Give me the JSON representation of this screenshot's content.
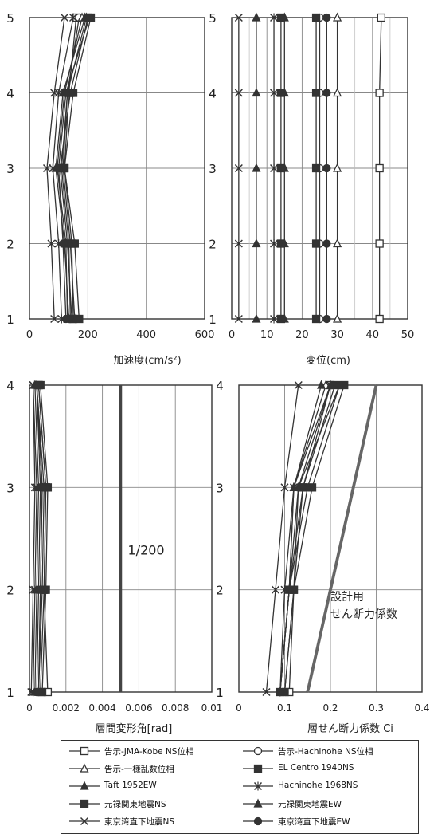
{
  "chart_data": [
    {
      "type": "line",
      "xlabel": "加速度(cm/s²)",
      "ylabel": "",
      "xticks": [
        "0",
        "200",
        "400",
        "600"
      ],
      "yticks": [
        "1",
        "2",
        "3",
        "4",
        "5"
      ],
      "xlim": [
        0,
        600
      ],
      "ylim": [
        1,
        5
      ],
      "grid": true,
      "y": [
        1,
        2,
        3,
        4,
        5
      ],
      "series": [
        {
          "name": "告示-JMA-Kobe NS位相",
          "marker": "square-open",
          "values": [
            150,
            145,
            120,
            135,
            160
          ]
        },
        {
          "name": "告示-Hachinohe NS位相",
          "marker": "circle-open",
          "values": [
            140,
            135,
            110,
            130,
            170
          ]
        },
        {
          "name": "告示-一様乱数位相",
          "marker": "triangle-open",
          "values": [
            130,
            125,
            95,
            120,
            180
          ]
        },
        {
          "name": "Taft 1952EW",
          "marker": "triangle",
          "values": [
            135,
            120,
            90,
            115,
            190
          ]
        },
        {
          "name": "EL Centro 1940NS",
          "marker": "square",
          "values": [
            170,
            155,
            120,
            150,
            210
          ]
        },
        {
          "name": "Hachinohe 1968NS",
          "marker": "x-bar",
          "values": [
            110,
            100,
            80,
            100,
            150
          ]
        },
        {
          "name": "元禄関東地震NS",
          "marker": "square",
          "values": [
            145,
            130,
            105,
            140,
            200
          ]
        },
        {
          "name": "元禄関東地震EW",
          "marker": "triangle",
          "values": [
            155,
            140,
            115,
            130,
            195
          ]
        },
        {
          "name": "東京湾直下地震NS",
          "marker": "x",
          "values": [
            85,
            75,
            60,
            85,
            120
          ]
        },
        {
          "name": "東京湾直下地震EW",
          "marker": "circle",
          "values": [
            125,
            115,
            100,
            125,
            205
          ]
        }
      ]
    },
    {
      "type": "line",
      "xlabel": "変位(cm)",
      "ylabel": "",
      "xticks": [
        "0",
        "10",
        "20",
        "30",
        "40",
        "50"
      ],
      "yticks": [
        "1",
        "2",
        "3",
        "4",
        "5"
      ],
      "xlim": [
        0,
        50
      ],
      "ylim": [
        1,
        5
      ],
      "grid": true,
      "y": [
        1,
        2,
        3,
        4,
        5
      ],
      "series": [
        {
          "name": "告示-JMA-Kobe NS位相",
          "marker": "square-open",
          "values": [
            42,
            42,
            42,
            42,
            42.5
          ]
        },
        {
          "name": "告示-Hachinohe NS位相",
          "marker": "circle-open",
          "values": [
            25,
            25,
            25,
            25,
            25
          ]
        },
        {
          "name": "告示-一様乱数位相",
          "marker": "triangle-open",
          "values": [
            30,
            30,
            30,
            30,
            30
          ]
        },
        {
          "name": "Taft 1952EW",
          "marker": "triangle",
          "values": [
            7,
            7,
            7,
            7,
            7
          ]
        },
        {
          "name": "EL Centro 1940NS",
          "marker": "square",
          "values": [
            14,
            14,
            14,
            14,
            14
          ]
        },
        {
          "name": "Hachinohe 1968NS",
          "marker": "x-bar",
          "values": [
            12,
            12,
            12,
            12,
            12
          ]
        },
        {
          "name": "元禄関東地震NS",
          "marker": "square",
          "values": [
            24,
            24,
            24,
            24,
            24
          ]
        },
        {
          "name": "元禄関東地震EW",
          "marker": "triangle",
          "values": [
            15,
            15,
            15,
            15,
            15
          ]
        },
        {
          "name": "東京湾直下地震NS",
          "marker": "x",
          "values": [
            2,
            2,
            2,
            2,
            2
          ]
        },
        {
          "name": "東京湾直下地震EW",
          "marker": "circle",
          "values": [
            27,
            27,
            27,
            27,
            27
          ]
        }
      ]
    },
    {
      "type": "line",
      "xlabel": "層間変形角[rad]",
      "ylabel": "",
      "xticks": [
        "0",
        "0.002",
        "0.004",
        "0.006",
        "0.008",
        "0.01"
      ],
      "yticks": [
        "1",
        "2",
        "3",
        "4"
      ],
      "xlim": [
        0,
        0.01
      ],
      "ylim": [
        1,
        4
      ],
      "grid": true,
      "annotation": "1/200",
      "reference_x": 0.005,
      "y": [
        1,
        2,
        3,
        4
      ],
      "series": [
        {
          "name": "告示-JMA-Kobe NS位相",
          "marker": "square-open",
          "values": [
            0.001,
            0.0008,
            0.0009,
            0.0005
          ]
        },
        {
          "name": "告示-Hachinohe NS位相",
          "marker": "circle-open",
          "values": [
            0.0004,
            0.0005,
            0.0006,
            0.0004
          ]
        },
        {
          "name": "告示-一様乱数位相",
          "marker": "triangle-open",
          "values": [
            0.0005,
            0.0006,
            0.0007,
            0.0004
          ]
        },
        {
          "name": "Taft 1952EW",
          "marker": "triangle",
          "values": [
            0.0003,
            0.0004,
            0.0005,
            0.0003
          ]
        },
        {
          "name": "EL Centro 1940NS",
          "marker": "square",
          "values": [
            0.0007,
            0.0009,
            0.001,
            0.0006
          ]
        },
        {
          "name": "Hachinohe 1968NS",
          "marker": "x-bar",
          "values": [
            0.0002,
            0.0003,
            0.0004,
            0.0002
          ]
        },
        {
          "name": "元禄関東地震NS",
          "marker": "square",
          "values": [
            0.0006,
            0.0008,
            0.0009,
            0.0005
          ]
        },
        {
          "name": "元禄関東地震EW",
          "marker": "triangle",
          "values": [
            0.0005,
            0.0007,
            0.0008,
            0.0004
          ]
        },
        {
          "name": "東京湾直下地震NS",
          "marker": "x",
          "values": [
            0.0001,
            0.0002,
            0.0003,
            0.0002
          ]
        },
        {
          "name": "東京湾直下地震EW",
          "marker": "circle",
          "values": [
            0.0005,
            0.0006,
            0.0007,
            0.0004
          ]
        }
      ]
    },
    {
      "type": "line",
      "xlabel": "層せん断力係数 Ci",
      "ylabel": "",
      "xticks": [
        "0",
        "0.1",
        "0.2",
        "0.3",
        "0.4"
      ],
      "yticks": [
        "1",
        "2",
        "3",
        "4"
      ],
      "xlim": [
        0,
        0.4
      ],
      "ylim": [
        1,
        4
      ],
      "grid": true,
      "annotation": "設計用\nせん断力係数",
      "design_line": [
        0.15,
        0.3
      ],
      "y": [
        1,
        2,
        3,
        4
      ],
      "series": [
        {
          "name": "告示-JMA-Kobe NS位相",
          "marker": "square-open",
          "values": [
            0.11,
            0.12,
            0.14,
            0.2
          ]
        },
        {
          "name": "告示-Hachinohe NS位相",
          "marker": "circle-open",
          "values": [
            0.1,
            0.12,
            0.13,
            0.22
          ]
        },
        {
          "name": "告示-一様乱数位相",
          "marker": "triangle-open",
          "values": [
            0.09,
            0.11,
            0.12,
            0.19
          ]
        },
        {
          "name": "Taft 1952EW",
          "marker": "triangle",
          "values": [
            0.09,
            0.11,
            0.12,
            0.18
          ]
        },
        {
          "name": "EL Centro 1940NS",
          "marker": "square",
          "values": [
            0.1,
            0.12,
            0.16,
            0.23
          ]
        },
        {
          "name": "Hachinohe 1968NS",
          "marker": "x-bar",
          "values": [
            0.09,
            0.1,
            0.12,
            0.2
          ]
        },
        {
          "name": "元禄関東地震NS",
          "marker": "square",
          "values": [
            0.09,
            0.11,
            0.14,
            0.21
          ]
        },
        {
          "name": "元禄関東地震EW",
          "marker": "triangle",
          "values": [
            0.09,
            0.11,
            0.13,
            0.2
          ]
        },
        {
          "name": "東京湾直下地震NS",
          "marker": "x",
          "values": [
            0.06,
            0.08,
            0.1,
            0.13
          ]
        },
        {
          "name": "東京湾直下地震EW",
          "marker": "circle",
          "values": [
            0.09,
            0.11,
            0.15,
            0.22
          ]
        }
      ]
    }
  ],
  "legend": [
    {
      "label": "告示-JMA-Kobe NS位相",
      "marker": "square-open"
    },
    {
      "label": "告示-Hachinohe NS位相",
      "marker": "circle-open"
    },
    {
      "label": "告示-一様乱数位相",
      "marker": "triangle-open"
    },
    {
      "label": "EL Centro 1940NS",
      "marker": "square"
    },
    {
      "label": "Taft 1952EW",
      "marker": "triangle"
    },
    {
      "label": "Hachinohe 1968NS",
      "marker": "x-bar"
    },
    {
      "label": "元禄関東地震NS",
      "marker": "square"
    },
    {
      "label": "元禄関東地震EW",
      "marker": "triangle"
    },
    {
      "label": "東京湾直下地震NS",
      "marker": "x"
    },
    {
      "label": "東京湾直下地震EW",
      "marker": "circle"
    }
  ]
}
